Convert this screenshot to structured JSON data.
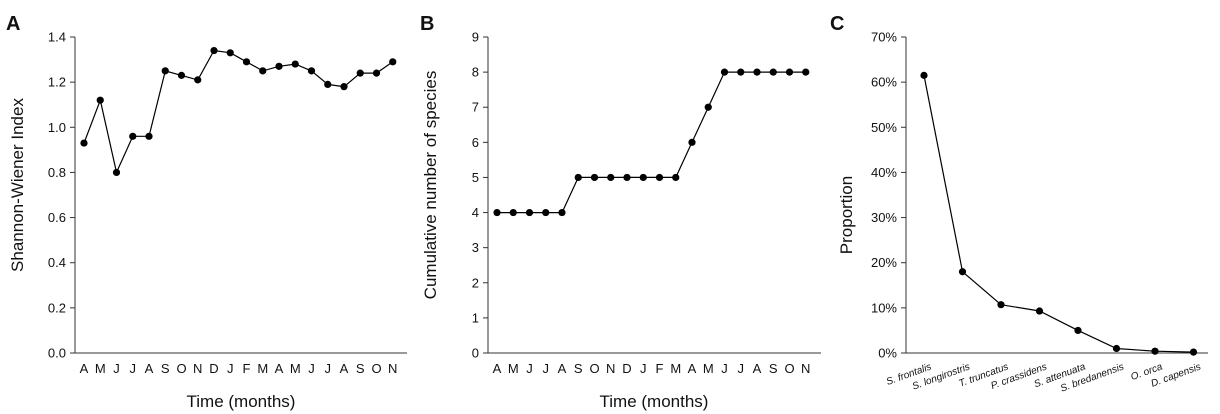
{
  "chart_data": [
    {
      "type": "line",
      "panel": "A",
      "xlabel": "Time (months)",
      "ylabel": "Shannon-Wiener Index",
      "ylim": [
        0,
        1.4
      ],
      "yticks": [
        "0.0",
        "0.2",
        "0.4",
        "0.6",
        "0.8",
        "1.0",
        "1.2",
        "1.4"
      ],
      "categories": [
        "A",
        "M",
        "J",
        "J",
        "A",
        "S",
        "O",
        "N",
        "D",
        "J",
        "F",
        "M",
        "A",
        "M",
        "J",
        "J",
        "A",
        "S",
        "O",
        "N"
      ],
      "values": [
        0.93,
        1.12,
        0.8,
        0.96,
        0.96,
        1.25,
        1.23,
        1.21,
        1.34,
        1.33,
        1.29,
        1.25,
        1.27,
        1.28,
        1.25,
        1.19,
        1.18,
        1.24,
        1.24,
        1.29
      ],
      "grid": false,
      "legend": "none"
    },
    {
      "type": "line",
      "panel": "B",
      "xlabel": "Time (months)",
      "ylabel": "Cumulative number of species",
      "ylim": [
        0,
        9
      ],
      "yticks": [
        "0",
        "1",
        "2",
        "3",
        "4",
        "5",
        "6",
        "7",
        "8",
        "9"
      ],
      "categories": [
        "A",
        "M",
        "J",
        "J",
        "A",
        "S",
        "O",
        "N",
        "D",
        "J",
        "F",
        "M",
        "A",
        "M",
        "J",
        "J",
        "A",
        "S",
        "O",
        "N"
      ],
      "values": [
        4,
        4,
        4,
        4,
        4,
        5,
        5,
        5,
        5,
        5,
        5,
        5,
        6,
        7,
        8,
        8,
        8,
        8,
        8,
        8
      ],
      "grid": false,
      "legend": "none"
    },
    {
      "type": "line",
      "panel": "C",
      "xlabel": "",
      "ylabel": "Proportion",
      "ylim": [
        0,
        70
      ],
      "yticks": [
        "0%",
        "10%",
        "20%",
        "30%",
        "40%",
        "50%",
        "60%",
        "70%"
      ],
      "categories": [
        "S. frontalis",
        "S. longirostris",
        "T. truncatus",
        "P. crassidens",
        "S. attenuata",
        "S. bredanensis",
        "O. orca",
        "D. capensis"
      ],
      "values": [
        61.5,
        18,
        10.7,
        9.3,
        5,
        1,
        0.4,
        0.2
      ],
      "grid": false,
      "legend": "none"
    }
  ]
}
